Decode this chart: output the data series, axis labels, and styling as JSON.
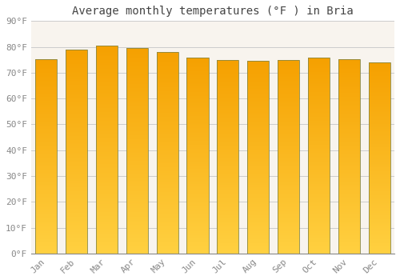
{
  "title": "Average monthly temperatures (°F ) in Bria",
  "months": [
    "Jan",
    "Feb",
    "Mar",
    "Apr",
    "May",
    "Jun",
    "Jul",
    "Aug",
    "Sep",
    "Oct",
    "Nov",
    "Dec"
  ],
  "values": [
    75.2,
    79.0,
    80.4,
    79.5,
    77.9,
    75.9,
    74.8,
    74.7,
    75.0,
    75.7,
    75.3,
    73.9
  ],
  "bar_color_top": "#F5A000",
  "bar_color_bottom": "#FFD040",
  "bar_edge_color": "#888844",
  "background_color": "#FFFFFF",
  "plot_bg_color": "#F8F4EE",
  "grid_color": "#CCCCCC",
  "text_color": "#888888",
  "title_color": "#444444",
  "ylim": [
    0,
    90
  ],
  "yticks": [
    0,
    10,
    20,
    30,
    40,
    50,
    60,
    70,
    80,
    90
  ],
  "title_fontsize": 10,
  "tick_fontsize": 8,
  "bar_width": 0.72,
  "num_gradient_steps": 200
}
